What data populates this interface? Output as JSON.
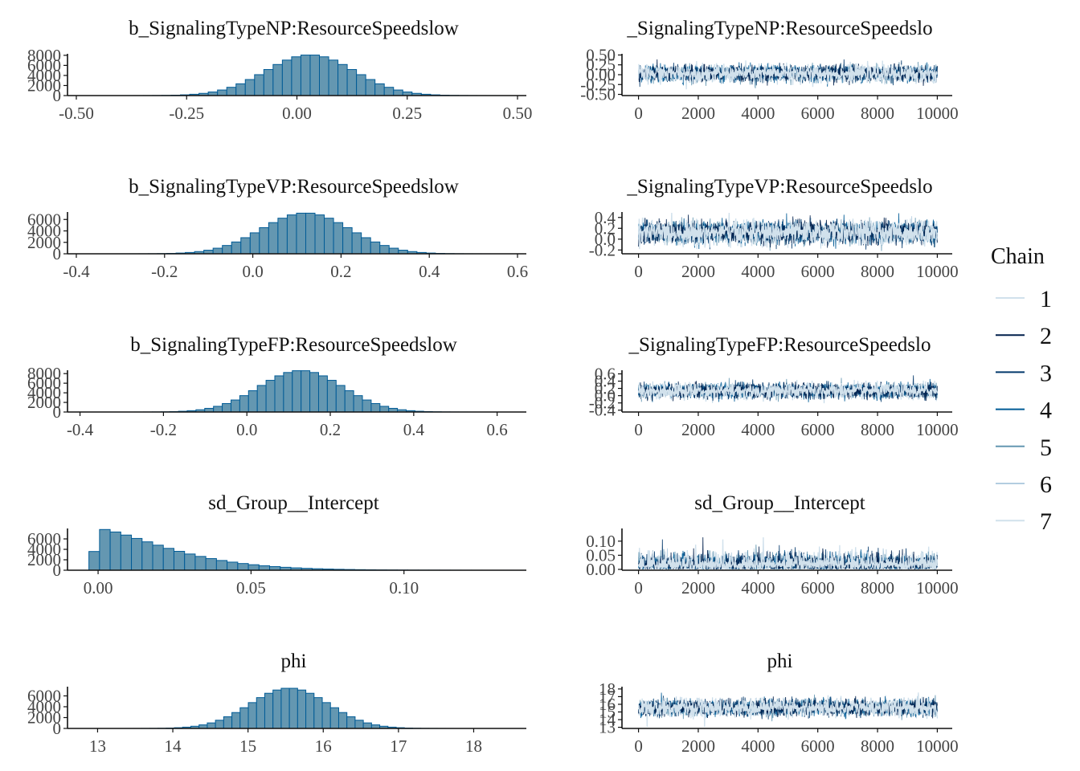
{
  "chart_data": {
    "type": "mcmc_plot",
    "legend": {
      "title": "Chain",
      "entries": [
        {
          "label": "1",
          "color": "#d1e1ec"
        },
        {
          "label": "2",
          "color": "#011f4b"
        },
        {
          "label": "3",
          "color": "#03396c"
        },
        {
          "label": "4",
          "color": "#005b96"
        },
        {
          "label": "5",
          "color": "#6497b1"
        },
        {
          "label": "6",
          "color": "#b3cde0"
        },
        {
          "label": "7",
          "color": "#d1e1ec"
        }
      ]
    },
    "hist_fill": "#6497b1",
    "hist_stroke": "#005b96",
    "trace_band": "#cfe0ec",
    "parameters": [
      {
        "name": "b_SignalingTypeNP:ResourceSpeedslow",
        "trace_title": "_SignalingTypeNP:ResourceSpeedslo",
        "hist": {
          "xlim": [
            -0.52,
            0.52
          ],
          "ylim": [
            0,
            8300
          ],
          "x_ticks": [
            -0.5,
            -0.25,
            0,
            0.25,
            0.5
          ],
          "x_tick_labels": [
            "-0.50",
            "-0.25",
            "0.00",
            "0.25",
            "0.50"
          ],
          "y_ticks": [
            0,
            2000,
            4000,
            6000,
            8000
          ],
          "y_tick_labels": [
            "0",
            "2000",
            "4000",
            "6000",
            "8000"
          ],
          "mean": 0.03,
          "sd": 0.1,
          "skew": false,
          "peak": 8050,
          "bins": 40
        },
        "trace": {
          "xlim": [
            -500,
            10500
          ],
          "ylim": [
            -0.53,
            0.53
          ],
          "x_ticks": [
            0,
            2000,
            4000,
            6000,
            8000,
            10000
          ],
          "x_tick_labels": [
            "0",
            "2000",
            "4000",
            "6000",
            "8000",
            "10000"
          ],
          "y_ticks": [
            -0.5,
            -0.25,
            0,
            0.25,
            0.5
          ],
          "y_tick_labels": [
            "-0.50",
            "-0.25",
            "0.00",
            "0.25",
            "0.50"
          ],
          "center": 0.03,
          "spread": 0.1,
          "skew": false
        }
      },
      {
        "name": "b_SignalingTypeVP:ResourceSpeedslow",
        "trace_title": "_SignalingTypeVP:ResourceSpeedslo",
        "hist": {
          "xlim": [
            -0.42,
            0.62
          ],
          "ylim": [
            0,
            7300
          ],
          "x_ticks": [
            -0.4,
            -0.2,
            0,
            0.2,
            0.4,
            0.6
          ],
          "x_tick_labels": [
            "-0.4",
            "-0.2",
            "0.0",
            "0.2",
            "0.4",
            "0.6"
          ],
          "y_ticks": [
            0,
            2000,
            4000,
            6000
          ],
          "y_tick_labels": [
            "0",
            "2000",
            "4000",
            "6000"
          ],
          "mean": 0.12,
          "sd": 0.1,
          "skew": false,
          "peak": 7100,
          "bins": 40
        },
        "trace": {
          "xlim": [
            -500,
            10500
          ],
          "ylim": [
            -0.27,
            0.5
          ],
          "x_ticks": [
            0,
            2000,
            4000,
            6000,
            8000,
            10000
          ],
          "x_tick_labels": [
            "0",
            "2000",
            "4000",
            "6000",
            "8000",
            "10000"
          ],
          "y_ticks": [
            -0.2,
            0,
            0.2,
            0.4
          ],
          "y_tick_labels": [
            "-0.2",
            "0.0",
            "0.2",
            "0.4"
          ],
          "center": 0.12,
          "spread": 0.1,
          "skew": false
        }
      },
      {
        "name": "b_SignalingTypeFP:ResourceSpeedslow",
        "trace_title": "_SignalingTypeFP:ResourceSpeedslo",
        "hist": {
          "xlim": [
            -0.43,
            0.67
          ],
          "ylim": [
            0,
            8700
          ],
          "x_ticks": [
            -0.4,
            -0.2,
            0,
            0.2,
            0.4,
            0.6
          ],
          "x_tick_labels": [
            "-0.4",
            "-0.2",
            "0.0",
            "0.2",
            "0.4",
            "0.6"
          ],
          "y_ticks": [
            0,
            2000,
            4000,
            6000,
            8000
          ],
          "y_tick_labels": [
            "0",
            "2000",
            "4000",
            "6000",
            "8000"
          ],
          "mean": 0.13,
          "sd": 0.1,
          "skew": false,
          "peak": 8600,
          "bins": 40
        },
        "trace": {
          "xlim": [
            -500,
            10500
          ],
          "ylim": [
            -0.45,
            0.7
          ],
          "x_ticks": [
            0,
            2000,
            4000,
            6000,
            8000,
            10000
          ],
          "x_tick_labels": [
            "0",
            "2000",
            "4000",
            "6000",
            "8000",
            "10000"
          ],
          "y_ticks": [
            -0.4,
            -0.2,
            0,
            0.2,
            0.4,
            0.6
          ],
          "y_tick_labels": [
            "-0.4",
            "-0.2",
            "0.0",
            "0.2",
            "0.4",
            "0.6"
          ],
          "center": 0.13,
          "spread": 0.1,
          "skew": false
        }
      },
      {
        "name": "sd_Group__Intercept",
        "trace_title": "sd_Group__Intercept",
        "hist": {
          "xlim": [
            -0.01,
            0.14
          ],
          "ylim": [
            0,
            8000
          ],
          "x_ticks": [
            0,
            0.05,
            0.1
          ],
          "x_tick_labels": [
            "0.00",
            "0.05",
            "0.10"
          ],
          "y_ticks": [
            0,
            2000,
            4000,
            6000
          ],
          "y_tick_labels": [
            "0",
            "2000",
            "4000",
            "6000"
          ],
          "skew": true,
          "scale": 0.025,
          "peak": 7800,
          "bins": 40,
          "range": [
            -0.003,
            0.136
          ]
        },
        "trace": {
          "xlim": [
            -500,
            10500
          ],
          "ylim": [
            -0.003,
            0.145
          ],
          "x_ticks": [
            0,
            2000,
            4000,
            6000,
            8000,
            10000
          ],
          "x_tick_labels": [
            "0",
            "2000",
            "4000",
            "6000",
            "8000",
            "10000"
          ],
          "y_ticks": [
            0,
            0.05,
            0.1
          ],
          "y_tick_labels": [
            "0.00",
            "0.05",
            "0.10"
          ],
          "center": 0.02,
          "spread": 0.025,
          "skew": true
        }
      },
      {
        "name": "phi",
        "trace_title": "phi",
        "hist": {
          "xlim": [
            12.6,
            18.7
          ],
          "ylim": [
            0,
            7700
          ],
          "x_ticks": [
            13,
            14,
            15,
            16,
            17,
            18
          ],
          "x_tick_labels": [
            "13",
            "14",
            "15",
            "16",
            "17",
            "18"
          ],
          "y_ticks": [
            0,
            2000,
            4000,
            6000
          ],
          "y_tick_labels": [
            "0",
            "2000",
            "4000",
            "6000"
          ],
          "mean": 15.55,
          "sd": 0.52,
          "skew": false,
          "peak": 7400,
          "bins": 40
        },
        "trace": {
          "xlim": [
            -500,
            10500
          ],
          "ylim": [
            12.85,
            18.3
          ],
          "x_ticks": [
            0,
            2000,
            4000,
            6000,
            8000,
            10000
          ],
          "x_tick_labels": [
            "0",
            "2000",
            "4000",
            "6000",
            "8000",
            "10000"
          ],
          "y_ticks": [
            13,
            14,
            15,
            16,
            17,
            18
          ],
          "y_tick_labels": [
            "13",
            "14",
            "15",
            "16",
            "17",
            "18"
          ],
          "center": 15.55,
          "spread": 0.52,
          "skew": false
        }
      }
    ]
  }
}
